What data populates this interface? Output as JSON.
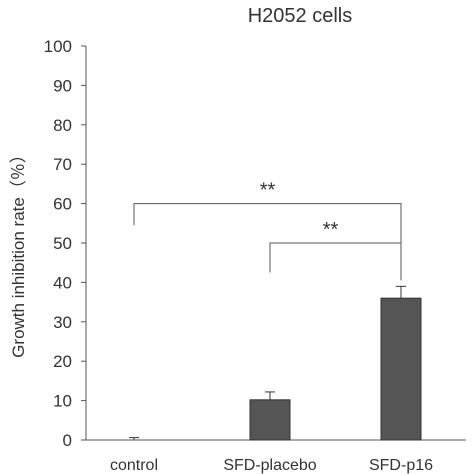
{
  "chart_data": {
    "type": "bar",
    "title": "H2052 cells",
    "xlabel": "",
    "ylabel": "Growth inhibition rate（％）",
    "categories": [
      "control",
      "SFD-placebo",
      "SFD-p16"
    ],
    "values": [
      0,
      10.2,
      36
    ],
    "errors": [
      0.6,
      2.0,
      3.0
    ],
    "ylim": [
      0,
      100
    ],
    "yticks": [
      "0",
      "10",
      "20",
      "30",
      "40",
      "50",
      "60",
      "70",
      "80",
      "90",
      "100"
    ],
    "bar_color": "#555555",
    "grid": false,
    "legend": "none",
    "significance": [
      {
        "from": 0,
        "to": 2,
        "label": "**"
      },
      {
        "from": 1,
        "to": 2,
        "label": "**"
      }
    ]
  }
}
